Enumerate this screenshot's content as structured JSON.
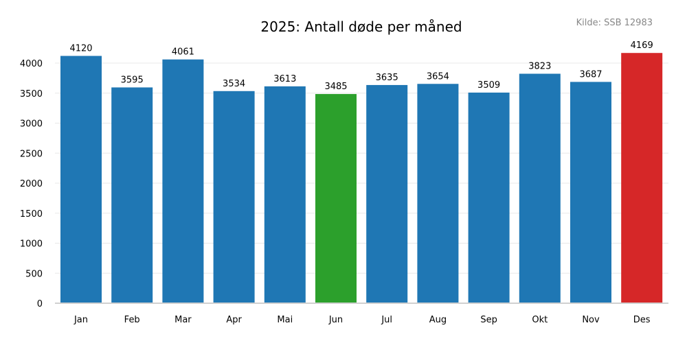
{
  "chart_data": {
    "type": "bar",
    "title": "2025: Antall døde per måned",
    "source": "Kilde: SSB 12983",
    "xlabel": "",
    "ylabel": "",
    "categories": [
      "Jan",
      "Feb",
      "Mar",
      "Apr",
      "Mai",
      "Jun",
      "Jul",
      "Aug",
      "Sep",
      "Okt",
      "Nov",
      "Des"
    ],
    "values": [
      4120,
      3595,
      4061,
      3534,
      3613,
      3485,
      3635,
      3654,
      3509,
      3823,
      3687,
      4169
    ],
    "ylim": [
      0,
      4400
    ],
    "yticks": [
      0,
      500,
      1000,
      1500,
      2000,
      2500,
      3000,
      3500,
      4000
    ],
    "grid": true,
    "colors": {
      "default": "#1f77b4",
      "min": "#2ca02c",
      "max": "#d62728"
    },
    "highlight": {
      "min_category": "Jun",
      "max_category": "Des"
    }
  }
}
